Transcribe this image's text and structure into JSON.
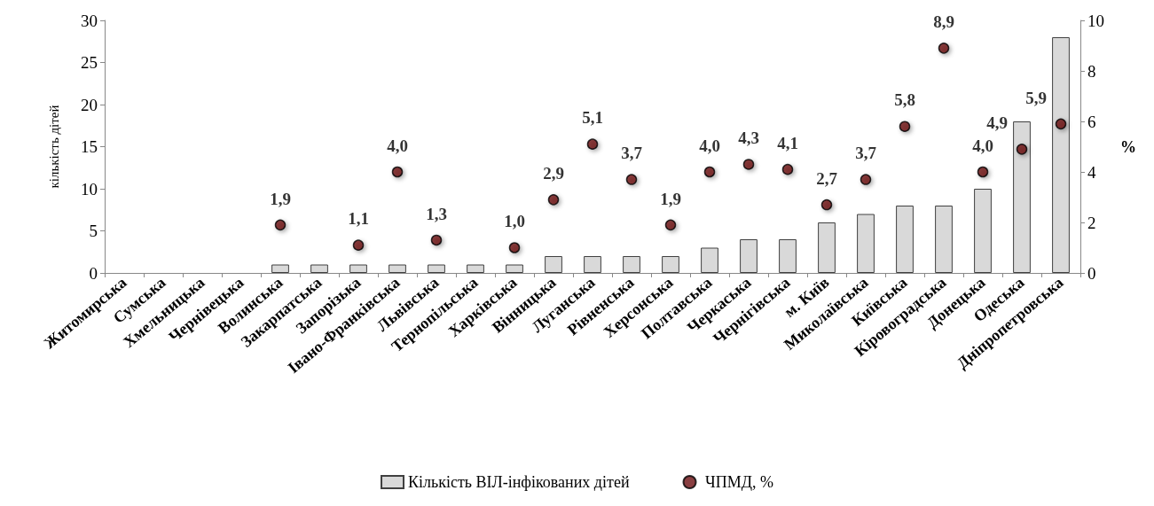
{
  "chart_data": {
    "type": "bar",
    "categories": [
      "Житомирська",
      "Сумська",
      "Хмельницька",
      "Чернівецька",
      "Волинська",
      "Закарпатська",
      "Запорізька",
      "Івано-Франківська",
      "Львівська",
      "Тернопільська",
      "Харківська",
      "Вінницька",
      "Луганська",
      "Рівненська",
      "Херсонська",
      "Полтавська",
      "Черкаська",
      "Чернігівська",
      "м. Київ",
      "Миколаївська",
      "Київська",
      "Кіровоградська",
      "Донецька",
      "Одеська",
      "Дніпропетровська"
    ],
    "series": [
      {
        "name": "Кількість ВІЛ-інфікованих дітей",
        "type": "bar",
        "color": "#d9d9d9",
        "values": [
          0,
          0,
          0,
          0,
          1,
          1,
          1,
          1,
          1,
          1,
          1,
          2,
          2,
          2,
          2,
          3,
          4,
          4,
          6,
          7,
          8,
          8,
          10,
          18,
          28
        ]
      },
      {
        "name": "ЧПМД, %",
        "type": "scatter",
        "axis": "y2",
        "color": "#6b0f12",
        "marker": "circle",
        "values": [
          null,
          null,
          null,
          null,
          1.9,
          null,
          1.1,
          4.0,
          1.3,
          null,
          1.0,
          2.9,
          5.1,
          3.7,
          1.9,
          4.0,
          4.3,
          4.1,
          2.7,
          3.7,
          5.8,
          8.9,
          4.0,
          4.9,
          5.9
        ],
        "value_labels": [
          null,
          null,
          null,
          null,
          "1,9",
          null,
          "1,1",
          "4,0",
          "1,3",
          null,
          "1,0",
          "2,9",
          "5,1",
          "3,7",
          "1,9",
          "4,0",
          "4,3",
          "4,1",
          "2,7",
          "3,7",
          "5,8",
          "8,9",
          "4,0",
          "4,9",
          "5,9"
        ]
      }
    ],
    "ylabel": "кількість дітей",
    "y2label": "%",
    "ylim": [
      0,
      30
    ],
    "yticks": [
      0,
      5,
      10,
      15,
      20,
      25,
      30
    ],
    "y2lim": [
      0,
      10
    ],
    "y2ticks": [
      0,
      2,
      4,
      6,
      8,
      10
    ],
    "legend": "bottom"
  }
}
